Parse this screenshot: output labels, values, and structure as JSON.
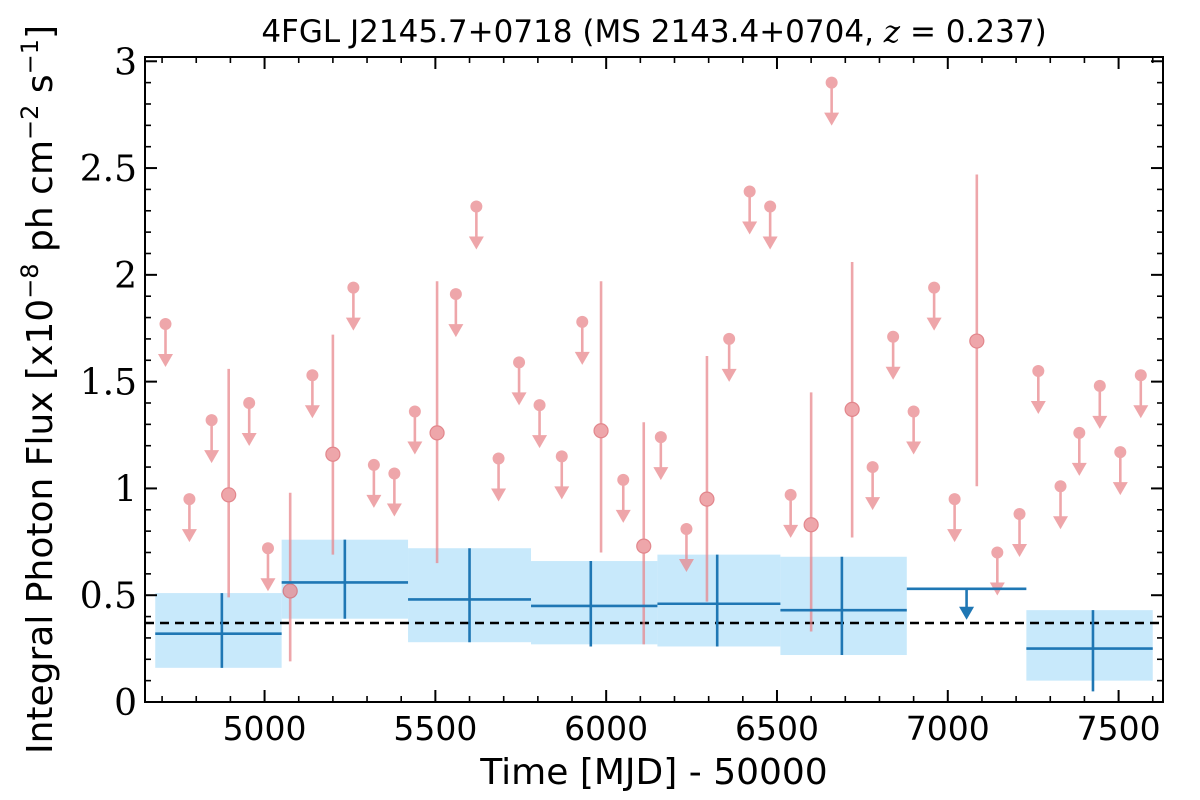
{
  "chart_data": {
    "type": "scatter",
    "title": {
      "prefix": "4FGL J2145.7+0718 (MS 2143.4+0704, ",
      "math_var": "z",
      "math_rest": " = 0.237",
      "suffix": ")"
    },
    "xlabel": "Time [MJD] - 50000",
    "ylabel": {
      "part1": "Integral Photon Flux [x10",
      "exp1": "−8",
      "part2": " ph cm",
      "exp2": "−2",
      "part3": " s",
      "exp3": "−1",
      "part4": "]"
    },
    "xlim": [
      4650,
      7630
    ],
    "ylim": [
      0,
      3.02
    ],
    "x_ticks": [
      {
        "value": 5000,
        "label": "5000"
      },
      {
        "value": 5500,
        "label": "5500"
      },
      {
        "value": 6000,
        "label": "6000"
      },
      {
        "value": 6500,
        "label": "6500"
      },
      {
        "value": 7000,
        "label": "7000"
      },
      {
        "value": 7500,
        "label": "7500"
      }
    ],
    "x_minor_step": 100,
    "y_ticks": [
      {
        "value": 0,
        "label": "0"
      },
      {
        "value": 0.5,
        "label": "0.5"
      },
      {
        "value": 1,
        "label": "1"
      },
      {
        "value": 1.5,
        "label": "1.5"
      },
      {
        "value": 2,
        "label": "2"
      },
      {
        "value": 2.5,
        "label": "2.5"
      },
      {
        "value": 3,
        "label": "3"
      }
    ],
    "y_minor_step": 0.1,
    "reference_line": {
      "y": 0.37,
      "style": "dashed",
      "color": "#000000"
    },
    "colors": {
      "short_series": "#e8858a",
      "long_series": "#1f77b4",
      "band_fill": "#c8e9fb"
    },
    "series_short_bin": {
      "upper_limits": [
        {
          "x": 4710,
          "y": 1.77
        },
        {
          "x": 4780,
          "y": 0.95
        },
        {
          "x": 4845,
          "y": 1.32
        },
        {
          "x": 4955,
          "y": 1.4
        },
        {
          "x": 5010,
          "y": 0.72
        },
        {
          "x": 5140,
          "y": 1.53
        },
        {
          "x": 5260,
          "y": 1.94
        },
        {
          "x": 5320,
          "y": 1.11
        },
        {
          "x": 5380,
          "y": 1.07
        },
        {
          "x": 5440,
          "y": 1.36
        },
        {
          "x": 5560,
          "y": 1.91
        },
        {
          "x": 5620,
          "y": 2.32
        },
        {
          "x": 5685,
          "y": 1.14
        },
        {
          "x": 5745,
          "y": 1.59
        },
        {
          "x": 5805,
          "y": 1.39
        },
        {
          "x": 5870,
          "y": 1.15
        },
        {
          "x": 5930,
          "y": 1.78
        },
        {
          "x": 6050,
          "y": 1.04
        },
        {
          "x": 6160,
          "y": 1.24
        },
        {
          "x": 6235,
          "y": 0.81
        },
        {
          "x": 6360,
          "y": 1.7
        },
        {
          "x": 6420,
          "y": 2.39
        },
        {
          "x": 6480,
          "y": 2.32
        },
        {
          "x": 6540,
          "y": 0.97
        },
        {
          "x": 6660,
          "y": 2.9
        },
        {
          "x": 6780,
          "y": 1.1
        },
        {
          "x": 6840,
          "y": 1.71
        },
        {
          "x": 6900,
          "y": 1.36
        },
        {
          "x": 6960,
          "y": 1.94
        },
        {
          "x": 7020,
          "y": 0.95
        },
        {
          "x": 7145,
          "y": 0.7
        },
        {
          "x": 7210,
          "y": 0.88
        },
        {
          "x": 7265,
          "y": 1.55
        },
        {
          "x": 7330,
          "y": 1.01
        },
        {
          "x": 7385,
          "y": 1.26
        },
        {
          "x": 7445,
          "y": 1.48
        },
        {
          "x": 7505,
          "y": 1.17
        },
        {
          "x": 7565,
          "y": 1.53
        }
      ],
      "detections": [
        {
          "x": 4895,
          "y": 0.97,
          "ylo": 0.49,
          "yhi": 1.56
        },
        {
          "x": 5075,
          "y": 0.52,
          "ylo": 0.19,
          "yhi": 0.98
        },
        {
          "x": 5200,
          "y": 1.16,
          "ylo": 0.69,
          "yhi": 1.72
        },
        {
          "x": 5505,
          "y": 1.26,
          "ylo": 0.65,
          "yhi": 1.97
        },
        {
          "x": 5985,
          "y": 1.27,
          "ylo": 0.7,
          "yhi": 1.97
        },
        {
          "x": 6110,
          "y": 0.73,
          "ylo": 0.27,
          "yhi": 1.31
        },
        {
          "x": 6295,
          "y": 0.95,
          "ylo": 0.47,
          "yhi": 1.62
        },
        {
          "x": 6600,
          "y": 0.83,
          "ylo": 0.33,
          "yhi": 1.45
        },
        {
          "x": 6720,
          "y": 1.37,
          "ylo": 0.77,
          "yhi": 2.06
        },
        {
          "x": 7085,
          "y": 1.69,
          "ylo": 1.01,
          "yhi": 2.47
        }
      ]
    },
    "series_long_bin": {
      "detections": [
        {
          "x": 4875,
          "xlo": 4680,
          "xhi": 5050,
          "y": 0.32,
          "ylo": 0.16,
          "yhi": 0.51,
          "band_lo": 0.16,
          "band_hi": 0.51
        },
        {
          "x": 5235,
          "xlo": 5050,
          "xhi": 5420,
          "y": 0.56,
          "ylo": 0.39,
          "yhi": 0.76,
          "band_lo": 0.39,
          "band_hi": 0.76
        },
        {
          "x": 5600,
          "xlo": 5420,
          "xhi": 5780,
          "y": 0.48,
          "ylo": 0.28,
          "yhi": 0.72,
          "band_lo": 0.28,
          "band_hi": 0.72
        },
        {
          "x": 5955,
          "xlo": 5780,
          "xhi": 6150,
          "y": 0.45,
          "ylo": 0.26,
          "yhi": 0.66,
          "band_lo": 0.27,
          "band_hi": 0.66
        },
        {
          "x": 6325,
          "xlo": 6150,
          "xhi": 6510,
          "y": 0.46,
          "ylo": 0.26,
          "yhi": 0.69,
          "band_lo": 0.26,
          "band_hi": 0.69
        },
        {
          "x": 6690,
          "xlo": 6510,
          "xhi": 6880,
          "y": 0.43,
          "ylo": 0.22,
          "yhi": 0.68,
          "band_lo": 0.22,
          "band_hi": 0.68
        },
        {
          "x": 7425,
          "xlo": 7230,
          "xhi": 7600,
          "y": 0.25,
          "ylo": 0.05,
          "yhi": 0.43,
          "band_lo": 0.1,
          "band_hi": 0.43
        }
      ],
      "upper_limits": [
        {
          "x": 7055,
          "xlo": 6880,
          "xhi": 7230,
          "y": 0.53
        }
      ]
    }
  }
}
